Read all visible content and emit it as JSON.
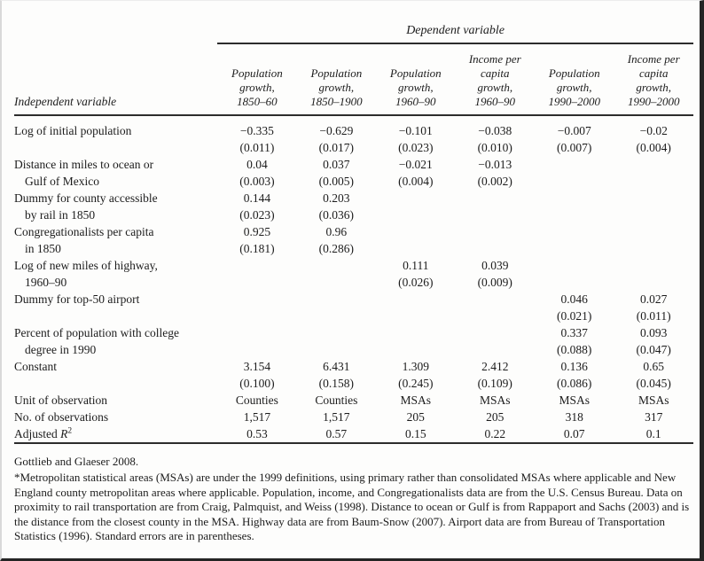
{
  "table": {
    "spanner": "Dependent variable",
    "row_header": "Independent variable",
    "columns": [
      "Population\ngrowth,\n1850–60",
      "Population\ngrowth,\n1850–1900",
      "Population\ngrowth,\n1960–90",
      "Income per\ncapita\ngrowth,\n1960–90",
      "Population\ngrowth,\n1990–2000",
      "Income per\ncapita\ngrowth,\n1990–2000"
    ],
    "rows": [
      {
        "label": [
          "Log of initial population"
        ],
        "coefs": [
          "−0.335",
          "−0.629",
          "−0.101",
          "−0.038",
          "−0.007",
          "−0.02"
        ],
        "ses": [
          "(0.011)",
          "(0.017)",
          "(0.023)",
          "(0.010)",
          "(0.007)",
          "(0.004)"
        ]
      },
      {
        "label": [
          "Distance in miles to ocean or",
          "Gulf of Mexico"
        ],
        "coefs": [
          "0.04",
          "0.037",
          "−0.021",
          "−0.013",
          "",
          ""
        ],
        "ses": [
          "(0.003)",
          "(0.005)",
          "(0.004)",
          "(0.002)",
          "",
          ""
        ]
      },
      {
        "label": [
          "Dummy for county accessible",
          "by rail in 1850"
        ],
        "coefs": [
          "0.144",
          "0.203",
          "",
          "",
          "",
          ""
        ],
        "ses": [
          "(0.023)",
          "(0.036)",
          "",
          "",
          "",
          ""
        ]
      },
      {
        "label": [
          "Congregationalists per capita",
          "in 1850"
        ],
        "coefs": [
          "0.925",
          "0.96",
          "",
          "",
          "",
          ""
        ],
        "ses": [
          "(0.181)",
          "(0.286)",
          "",
          "",
          "",
          ""
        ]
      },
      {
        "label": [
          "Log of new miles of highway,",
          "1960–90"
        ],
        "coefs": [
          "",
          "",
          "0.111",
          "0.039",
          "",
          ""
        ],
        "ses": [
          "",
          "",
          "(0.026)",
          "(0.009)",
          "",
          ""
        ]
      },
      {
        "label": [
          "Dummy for top-50 airport"
        ],
        "coefs": [
          "",
          "",
          "",
          "",
          "0.046",
          "0.027"
        ],
        "ses": [
          "",
          "",
          "",
          "",
          "(0.021)",
          "(0.011)"
        ]
      },
      {
        "label": [
          "Percent of population with college",
          "degree in 1990"
        ],
        "coefs": [
          "",
          "",
          "",
          "",
          "0.337",
          "0.093"
        ],
        "ses": [
          "",
          "",
          "",
          "",
          "(0.088)",
          "(0.047)"
        ]
      },
      {
        "label": [
          "Constant"
        ],
        "coefs": [
          "3.154",
          "6.431",
          "1.309",
          "2.412",
          "0.136",
          "0.65"
        ],
        "ses": [
          "(0.100)",
          "(0.158)",
          "(0.245)",
          "(0.109)",
          "(0.086)",
          "(0.045)"
        ]
      }
    ],
    "stat_rows": [
      {
        "label_parts": [
          [
            "Unit of observation",
            ""
          ]
        ],
        "values": [
          "Counties",
          "Counties",
          "MSAs",
          "MSAs",
          "MSAs",
          "MSAs"
        ]
      },
      {
        "label_parts": [
          [
            "No. of observations",
            ""
          ]
        ],
        "values": [
          "1,517",
          "1,517",
          "205",
          "205",
          "318",
          "317"
        ]
      },
      {
        "label_parts": [
          [
            "Adjusted ",
            ""
          ],
          [
            "R",
            "i"
          ],
          [
            "2",
            "sup"
          ]
        ],
        "values": [
          "0.53",
          "0.57",
          "0.15",
          "0.22",
          "0.07",
          "0.1"
        ]
      }
    ]
  },
  "footer": {
    "source": "Gottlieb and Glaeser 2008.",
    "note": "*Metropolitan statistical areas (MSAs) are under the 1999 definitions, using primary rather than consolidated MSAs where applicable and New England county metropolitan areas where applicable. Population, income, and Congregationalists data are from the U.S. Census Bureau. Data on proximity to rail transportation are from Craig, Palmquist, and Weiss (1998). Distance to ocean or Gulf is from Rappaport and Sachs (2003) and is the distance from the closest county in the MSA. Highway data are from Baum-Snow (2007). Airport data are from Bureau of Transportation Statistics (1996). Standard errors are in parentheses."
  }
}
